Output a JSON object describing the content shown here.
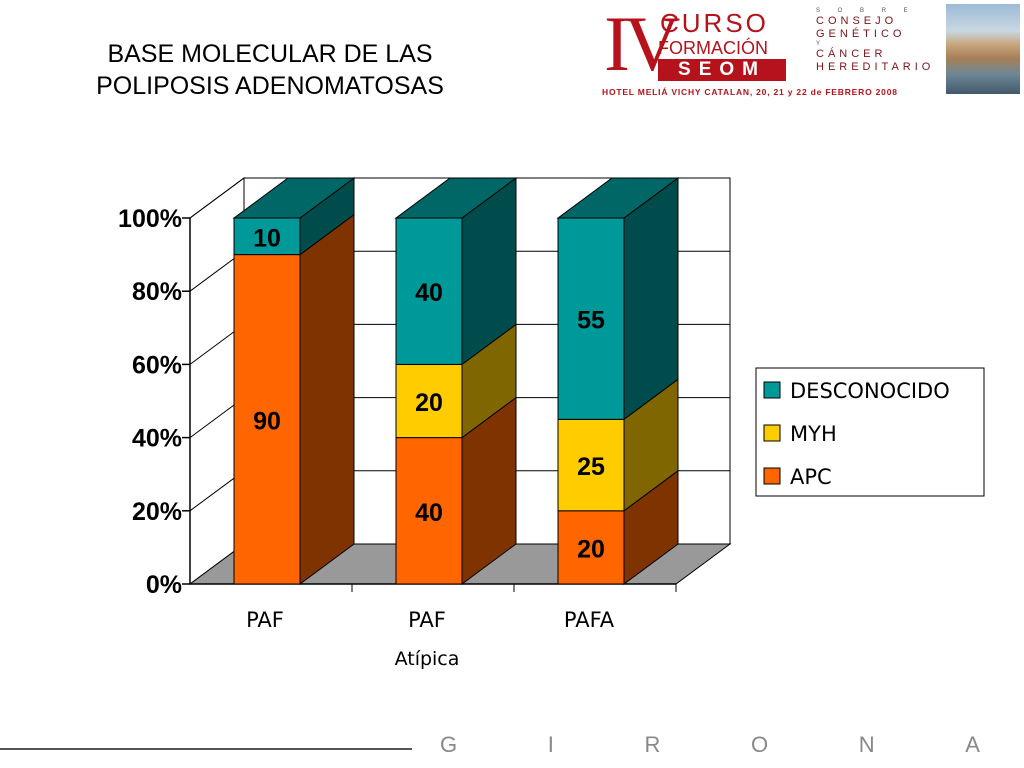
{
  "slide": {
    "title_line1": "BASE MOLECULAR DE LAS",
    "title_line2": "POLIPOSIS ADENOMATOSAS",
    "footer_letters": [
      "G",
      "I",
      "R",
      "O",
      "N",
      "A"
    ]
  },
  "logo": {
    "numeral": "IV",
    "curso": "CURSO",
    "formacion": "FORMACIÓN",
    "seom": "SEOM",
    "hotel": "HOTEL MELIÁ VICHY CATALAN, 20, 21 y 22 de FEBRERO 2008",
    "line_sobre": "S O B R E",
    "line_consejo": "CONSEJO",
    "line_genetico": "GENÉTICO",
    "line_y": "Y",
    "line_cancer": "CÁNCER",
    "line_hereditario": "HEREDITARIO"
  },
  "chart_data": {
    "type": "bar",
    "stacked": true,
    "three_d": true,
    "categories": [
      "PAF",
      "PAF",
      "PAFA"
    ],
    "category_sublabels": [
      "",
      "Atípica",
      ""
    ],
    "y_tick_labels": [
      "0%",
      "20%",
      "40%",
      "60%",
      "80%",
      "100%"
    ],
    "ylim": [
      0,
      100
    ],
    "legend_position": "right",
    "series": [
      {
        "name": "APC",
        "values": [
          90,
          40,
          20
        ],
        "color": "#ff6600",
        "side_color": "#7f3300"
      },
      {
        "name": "MYH",
        "values": [
          0,
          20,
          25
        ],
        "color": "#ffcc00",
        "side_color": "#806600"
      },
      {
        "name": "DESCONOCIDO",
        "values": [
          10,
          40,
          55
        ],
        "color": "#009999",
        "side_color": "#004c4c"
      }
    ],
    "legend_order": [
      "DESCONOCIDO",
      "MYH",
      "APC"
    ]
  }
}
